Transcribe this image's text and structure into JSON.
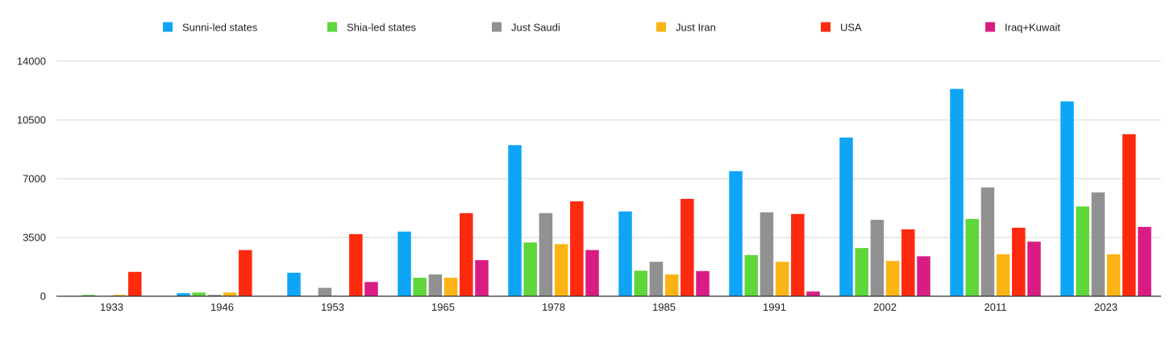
{
  "chart_data": {
    "type": "bar",
    "title": "",
    "xlabel": "",
    "ylabel": "",
    "ylim": [
      0,
      14000
    ],
    "yticks": [
      0,
      3500,
      7000,
      10500,
      14000
    ],
    "grid": true,
    "legend_position": "top",
    "categories": [
      "1933",
      "1946",
      "1953",
      "1965",
      "1978",
      "1985",
      "1991",
      "2002",
      "2011",
      "2023"
    ],
    "series": [
      {
        "name": "Sunni-led states",
        "color": "#0ea5f7",
        "values": [
          0,
          180,
          1400,
          3850,
          9000,
          5050,
          7450,
          9450,
          12350,
          11600
        ]
      },
      {
        "name": "Shia-led states",
        "color": "#5fd63a",
        "values": [
          80,
          220,
          0,
          1100,
          3200,
          1520,
          2450,
          2870,
          4600,
          5350
        ]
      },
      {
        "name": "Just Saudi",
        "color": "#919191",
        "values": [
          0,
          80,
          500,
          1300,
          4950,
          2050,
          5000,
          4550,
          6480,
          6180
        ]
      },
      {
        "name": "Just Iran",
        "color": "#fbb414",
        "values": [
          80,
          220,
          0,
          1100,
          3100,
          1300,
          2050,
          2100,
          2500,
          2500
        ]
      },
      {
        "name": "USA",
        "color": "#fe2a0d",
        "values": [
          1450,
          2750,
          3700,
          4950,
          5650,
          5800,
          4900,
          3980,
          4080,
          9650
        ]
      },
      {
        "name": "Iraq+Kuwait",
        "color": "#d91c83",
        "values": [
          0,
          0,
          850,
          2150,
          2750,
          1500,
          280,
          2380,
          3250,
          4130
        ]
      }
    ]
  }
}
